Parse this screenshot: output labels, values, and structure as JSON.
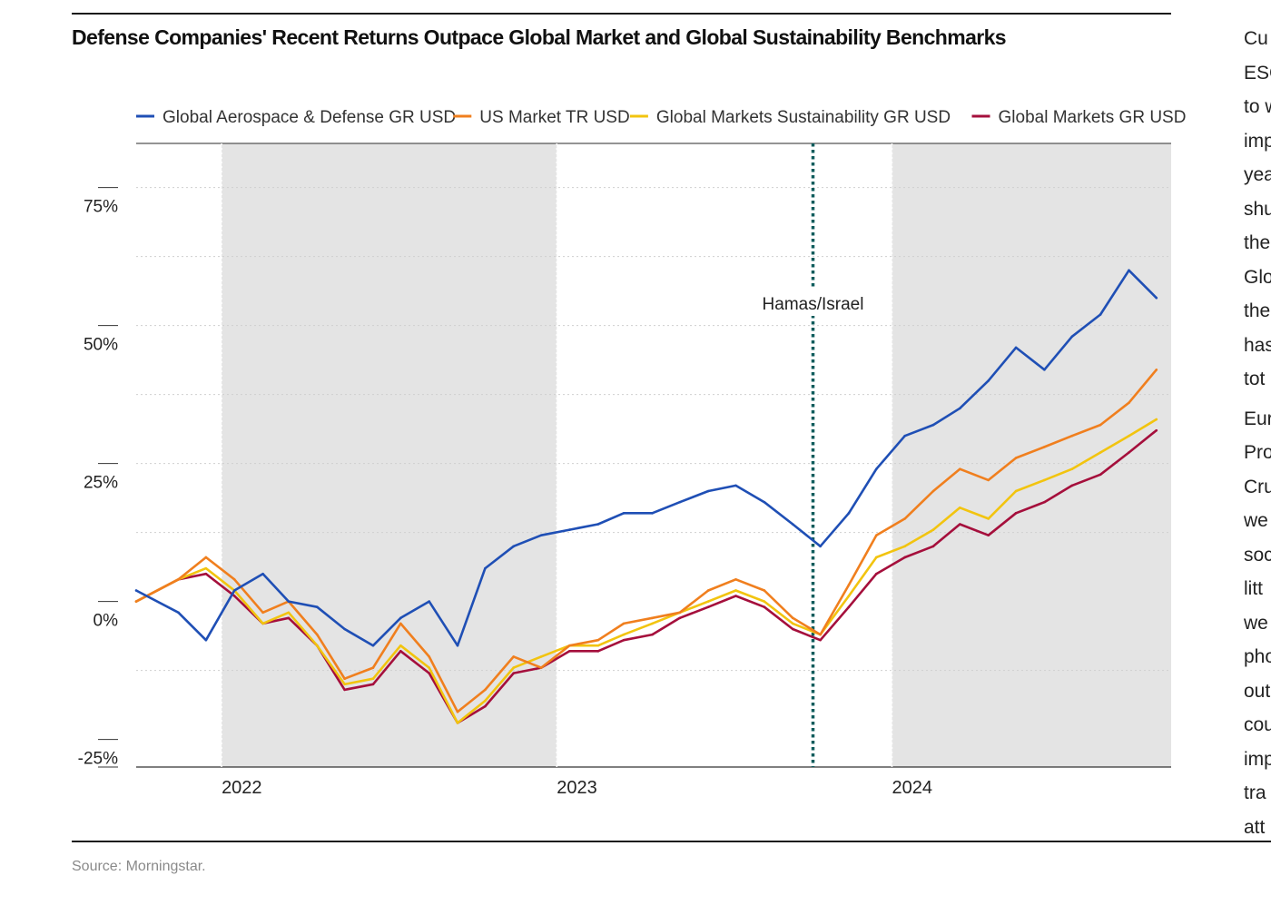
{
  "title": "Defense Companies' Recent Returns Outpace Global Market and Global Sustainability Benchmarks",
  "source": "Source: Morningstar.",
  "side_text_fragments": {
    "para1": [
      "Cu",
      "ESG",
      "to w",
      "imp",
      "yea",
      "shu",
      "the",
      "Glo",
      "the",
      "has",
      "tot"
    ],
    "para2": [
      "Eur",
      "Pro",
      "Cru",
      "we",
      "soc",
      "litt",
      "we",
      "pho",
      "out",
      "cou",
      "imp",
      "tra",
      "att"
    ]
  },
  "chart_data": {
    "type": "line",
    "title": "Defense Companies' Recent Returns Outpace Global Market and Global Sustainability Benchmarks",
    "xlabel": "",
    "ylabel": "",
    "x_tick_labels": [
      "2022",
      "2023",
      "2024"
    ],
    "y_tick_labels": [
      "75%",
      "50%",
      "25%",
      "0%",
      "-25%"
    ],
    "ylim": [
      -25,
      75
    ],
    "xlim": [
      "2021-09-30",
      "2024-10-31"
    ],
    "grid": true,
    "legend_position": "top",
    "shaded_periods": [
      [
        "2022-01-01",
        "2023-01-01"
      ],
      [
        "2024-01-01",
        "2024-10-31"
      ]
    ],
    "annotations": [
      {
        "label": "Hamas/Israel",
        "date": "2023-10-07"
      }
    ],
    "x": [
      "2021-10",
      "2021-11",
      "2021-12",
      "2022-01",
      "2022-02",
      "2022-03",
      "2022-04",
      "2022-05",
      "2022-06",
      "2022-07",
      "2022-08",
      "2022-09",
      "2022-10",
      "2022-11",
      "2022-12",
      "2023-01",
      "2023-02",
      "2023-03",
      "2023-04",
      "2023-05",
      "2023-06",
      "2023-07",
      "2023-08",
      "2023-09",
      "2023-10",
      "2023-11",
      "2023-12",
      "2024-01",
      "2024-02",
      "2024-03",
      "2024-04",
      "2024-05",
      "2024-06",
      "2024-07",
      "2024-08",
      "2024-09",
      "2024-10"
    ],
    "series": [
      {
        "name": "Global Aerospace & Defense GR USD",
        "color": "#1f4fb5",
        "values": [
          2,
          -2,
          -7,
          2,
          5,
          0,
          -1,
          -5,
          -8,
          -3,
          0,
          -8,
          6,
          10,
          12,
          13,
          14,
          16,
          16,
          18,
          20,
          21,
          18,
          14,
          10,
          16,
          24,
          30,
          32,
          35,
          40,
          46,
          42,
          48,
          52,
          60,
          55
        ]
      },
      {
        "name": "US Market TR USD",
        "color": "#f07f1e",
        "values": [
          0,
          4,
          8,
          4,
          -2,
          0,
          -6,
          -14,
          -12,
          -4,
          -10,
          -20,
          -16,
          -10,
          -12,
          -8,
          -7,
          -4,
          -3,
          -2,
          2,
          4,
          2,
          -3,
          -6,
          3,
          12,
          15,
          20,
          24,
          22,
          26,
          28,
          30,
          32,
          36,
          42
        ]
      },
      {
        "name": "Global Markets Sustainability GR USD",
        "color": "#f2c40f",
        "values": [
          0,
          4,
          6,
          2,
          -4,
          -2,
          -8,
          -15,
          -14,
          -8,
          -12,
          -22,
          -18,
          -12,
          -10,
          -8,
          -8,
          -6,
          -4,
          -2,
          0,
          2,
          0,
          -4,
          -6,
          1,
          8,
          10,
          13,
          17,
          15,
          20,
          22,
          24,
          27,
          30,
          33
        ]
      },
      {
        "name": "Global Markets GR USD",
        "color": "#a50f3c",
        "values": [
          0,
          4,
          5,
          1,
          -4,
          -3,
          -8,
          -16,
          -15,
          -9,
          -13,
          -22,
          -19,
          -13,
          -12,
          -9,
          -9,
          -7,
          -6,
          -3,
          -1,
          1,
          -1,
          -5,
          -7,
          -1,
          5,
          8,
          10,
          14,
          12,
          16,
          18,
          21,
          23,
          27,
          31
        ]
      }
    ]
  }
}
